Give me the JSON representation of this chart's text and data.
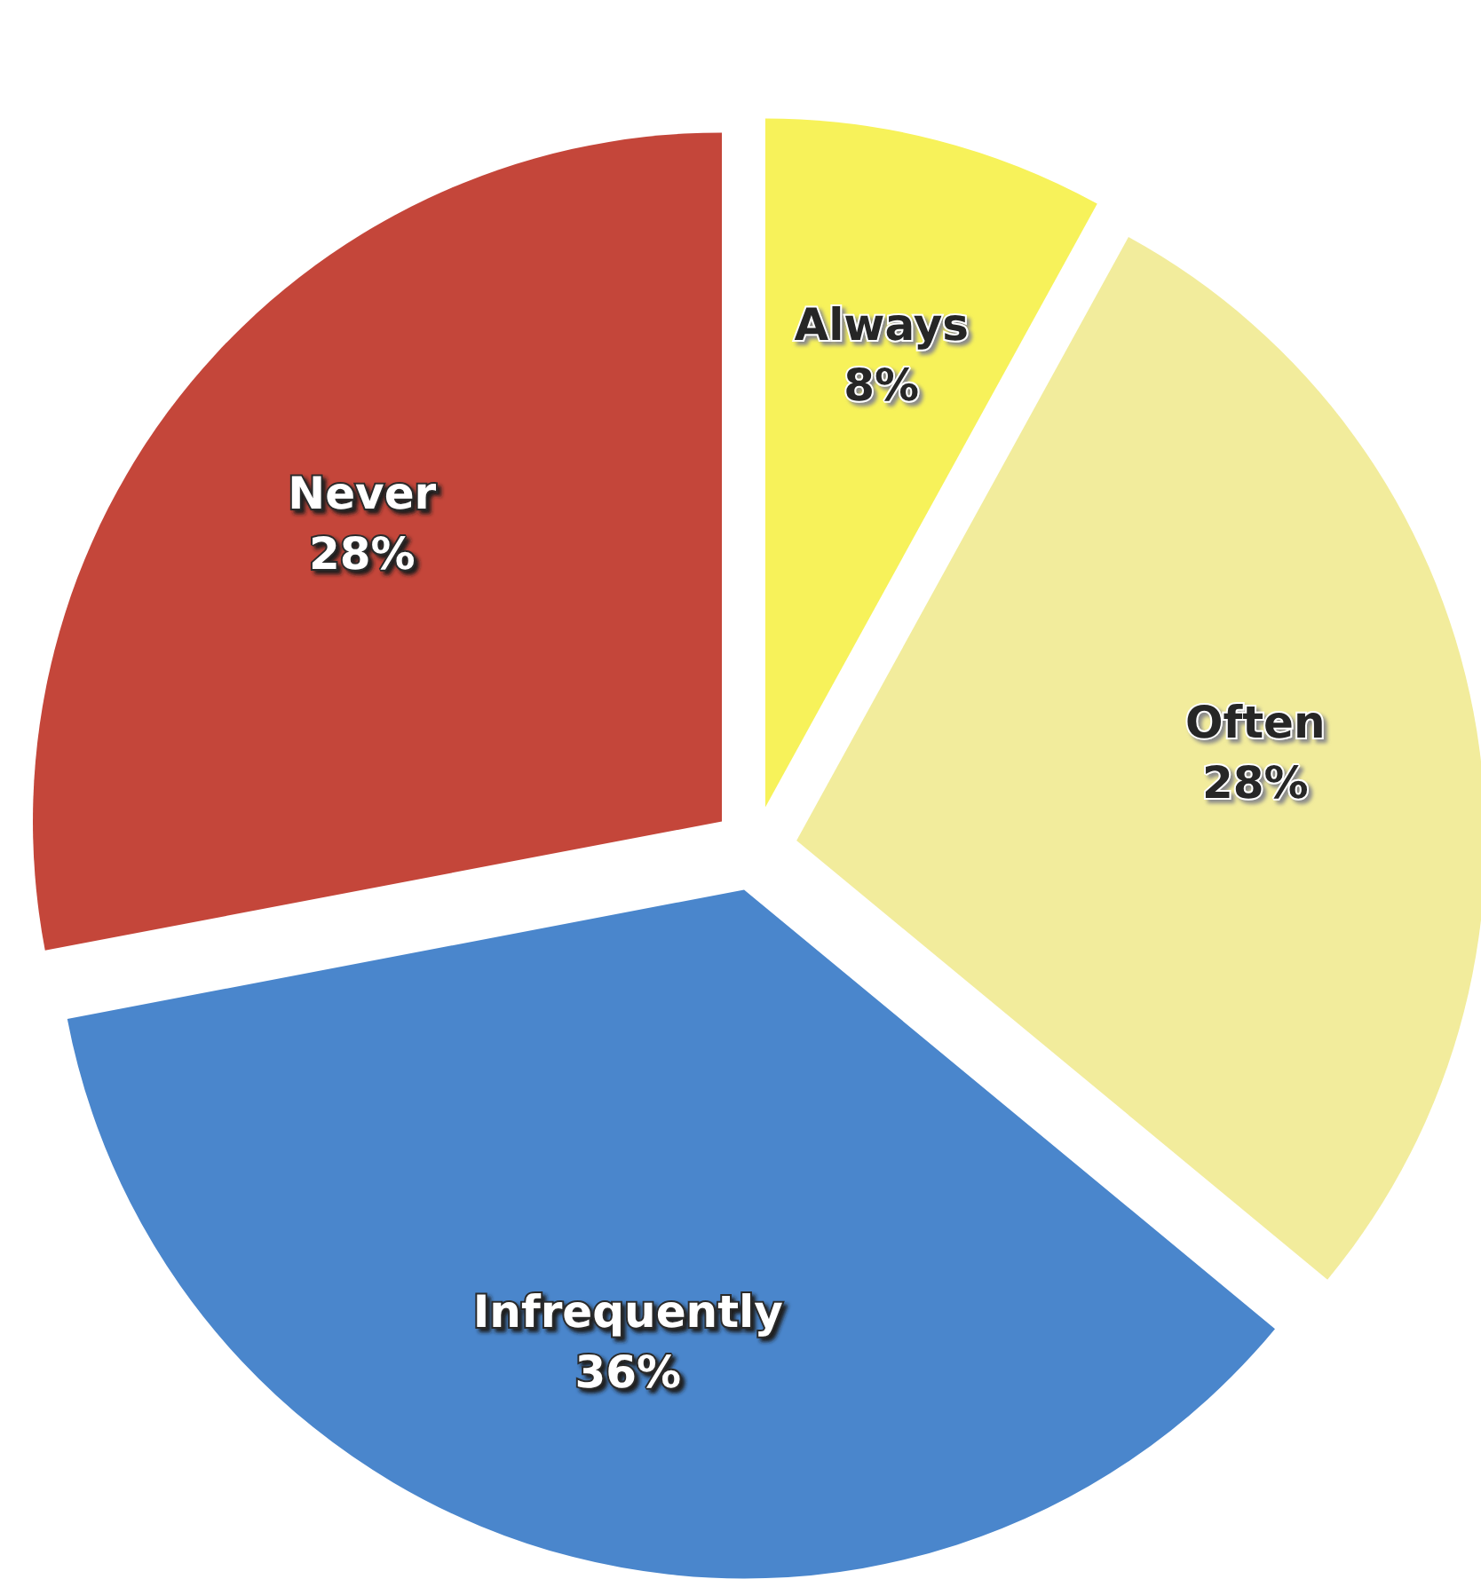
{
  "chart_data": {
    "type": "pie",
    "categories": [
      "Always",
      "Often",
      "Infrequently",
      "Never"
    ],
    "values": [
      8,
      28,
      36,
      28
    ],
    "value_labels": [
      "8%",
      "28%",
      "36%",
      "28%"
    ],
    "colors": [
      "#f7f25a",
      "#f2ec9c",
      "#4a86cc",
      "#c4463a"
    ]
  }
}
